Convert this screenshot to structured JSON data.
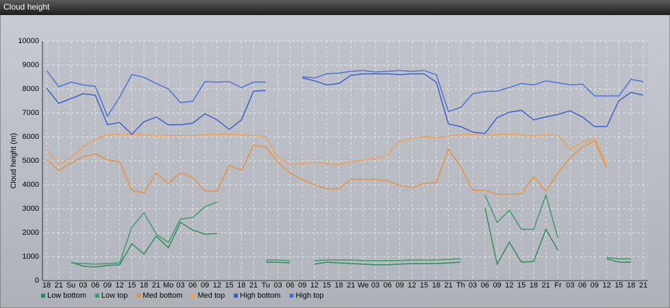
{
  "chart_data": {
    "type": "line",
    "title": "Cloud height",
    "y_label": "Cloud height (m)",
    "categories": [
      "18",
      "21",
      "Su",
      "03",
      "06",
      "09",
      "12",
      "15",
      "18",
      "21",
      "Mo",
      "03",
      "06",
      "09",
      "12",
      "15",
      "18",
      "21",
      "Tu",
      "03",
      "06",
      "09",
      "12",
      "15",
      "18",
      "21",
      "We",
      "03",
      "06",
      "09",
      "12",
      "15",
      "18",
      "21",
      "Th",
      "03",
      "06",
      "09",
      "12",
      "15",
      "18",
      "21",
      "Fr",
      "03",
      "06",
      "09",
      "12",
      "15",
      "18",
      "21"
    ],
    "ylim": [
      0,
      10000
    ],
    "yticks": [
      0,
      1000,
      2000,
      3000,
      4000,
      5000,
      6000,
      7000,
      8000,
      9000,
      10000
    ],
    "grid": true,
    "legend": "bottom-left",
    "series": [
      {
        "name": "Low bottom",
        "color": "#2e8a58",
        "values": [
          null,
          null,
          770,
          600,
          570,
          630,
          660,
          1540,
          1110,
          1860,
          1370,
          2430,
          2110,
          1940,
          1970,
          null,
          null,
          null,
          770,
          770,
          740,
          null,
          690,
          770,
          740,
          710,
          690,
          660,
          660,
          690,
          710,
          710,
          710,
          740,
          770,
          null,
          3030,
          690,
          1600,
          770,
          800,
          2140,
          1260,
          null,
          null,
          null,
          910,
          770,
          770,
          null
        ]
      },
      {
        "name": "Low top",
        "color": "#3a9a6a",
        "values": [
          null,
          null,
          740,
          710,
          690,
          710,
          740,
          2230,
          2830,
          1940,
          1600,
          2570,
          2630,
          3090,
          3290,
          null,
          null,
          null,
          860,
          860,
          830,
          null,
          830,
          860,
          860,
          860,
          830,
          830,
          830,
          830,
          860,
          860,
          860,
          890,
          910,
          null,
          3570,
          2430,
          2940,
          2140,
          2140,
          3570,
          1770,
          null,
          null,
          null,
          970,
          910,
          910,
          null
        ]
      },
      {
        "name": "Med bottom",
        "color": "#e8913a",
        "values": [
          5060,
          4600,
          4910,
          5170,
          5290,
          5030,
          4970,
          3770,
          3660,
          4490,
          4060,
          4510,
          4310,
          3740,
          3740,
          4800,
          4600,
          5660,
          5570,
          4940,
          4490,
          4200,
          4000,
          3830,
          3830,
          4230,
          4230,
          4230,
          4170,
          3970,
          3890,
          4060,
          4090,
          5490,
          4770,
          3770,
          3770,
          3600,
          3600,
          3630,
          4340,
          3740,
          4490,
          5140,
          5570,
          5830,
          4710,
          null,
          null,
          null
        ]
      },
      {
        "name": "Med top",
        "color": "#f0a050",
        "values": [
          5490,
          4860,
          5140,
          5570,
          5910,
          6090,
          6110,
          6110,
          6090,
          6030,
          6060,
          6060,
          6060,
          6090,
          6110,
          6110,
          6090,
          6060,
          6000,
          5140,
          4860,
          4890,
          4940,
          4890,
          4830,
          4970,
          5030,
          5090,
          5260,
          5800,
          5940,
          6000,
          5970,
          6030,
          6090,
          6110,
          6060,
          6110,
          6110,
          6090,
          6030,
          6090,
          6060,
          5490,
          5770,
          5940,
          4860,
          null,
          null,
          null
        ]
      },
      {
        "name": "High bottom",
        "color": "#3a5fcd",
        "values": [
          8030,
          7400,
          7600,
          7800,
          7740,
          6510,
          6600,
          6110,
          6630,
          6830,
          6510,
          6510,
          6570,
          6970,
          6710,
          6310,
          6710,
          7910,
          7940,
          null,
          null,
          8460,
          8340,
          8170,
          8230,
          8570,
          8630,
          8630,
          8630,
          8600,
          8630,
          8630,
          8290,
          6540,
          6430,
          6200,
          6140,
          6800,
          7030,
          7110,
          6710,
          6830,
          6940,
          7090,
          6830,
          6430,
          6430,
          7510,
          7860,
          7740
        ]
      },
      {
        "name": "High top",
        "color": "#4a70dd",
        "values": [
          8770,
          8090,
          8290,
          8170,
          8110,
          6860,
          7660,
          8600,
          8490,
          8230,
          8000,
          7430,
          7490,
          8310,
          8290,
          8310,
          8060,
          8290,
          8290,
          null,
          null,
          8510,
          8460,
          8630,
          8660,
          8740,
          8770,
          8710,
          8740,
          8770,
          8740,
          8770,
          8600,
          7060,
          7230,
          7800,
          7890,
          7910,
          8060,
          8230,
          8170,
          8340,
          8260,
          8170,
          8200,
          7710,
          7710,
          7710,
          8400,
          8310
        ]
      }
    ]
  }
}
